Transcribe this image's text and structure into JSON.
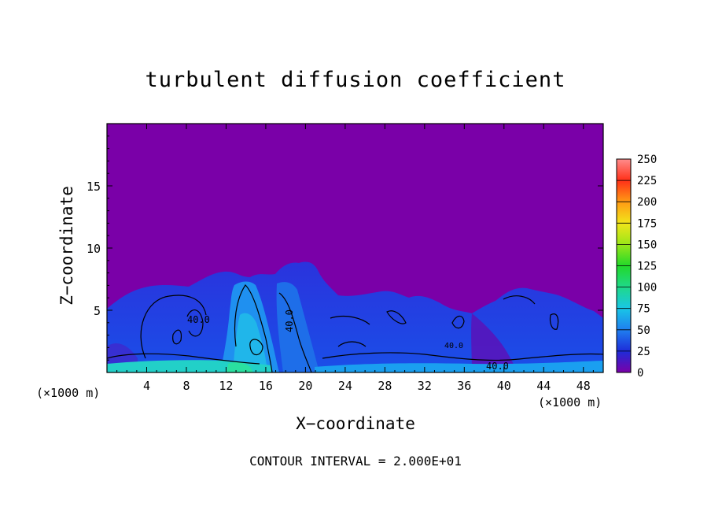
{
  "chart_data": {
    "type": "heatmap",
    "title": "turbulent diffusion coefficient",
    "xlabel": "X−coordinate",
    "ylabel": "Z−coordinate",
    "x_unit_left": "(×1000 m)",
    "x_unit_right": "(×1000 m)",
    "footer": "CONTOUR INTERVAL = 2.000E+01",
    "xlim": [
      0,
      50
    ],
    "ylim": [
      0,
      20
    ],
    "xticks": [
      4,
      8,
      12,
      16,
      20,
      24,
      28,
      32,
      36,
      40,
      44,
      48
    ],
    "yticks": [
      5,
      10,
      15
    ],
    "colorbar": {
      "range": [
        0,
        250
      ],
      "ticks": [
        0,
        25,
        50,
        75,
        100,
        125,
        150,
        175,
        200,
        225,
        250
      ],
      "colors": [
        "#7a00a8",
        "#1e2cd9",
        "#1f7ff0",
        "#19c6e6",
        "#1fd98a",
        "#22d92a",
        "#9ae619",
        "#f2e51a",
        "#ff9a14",
        "#ff3018",
        "#ff8c8c"
      ]
    },
    "contour_labels": [
      "40.0",
      "40.0",
      "40.0",
      "40.0"
    ],
    "grid": false,
    "legend": "colorbar right"
  }
}
